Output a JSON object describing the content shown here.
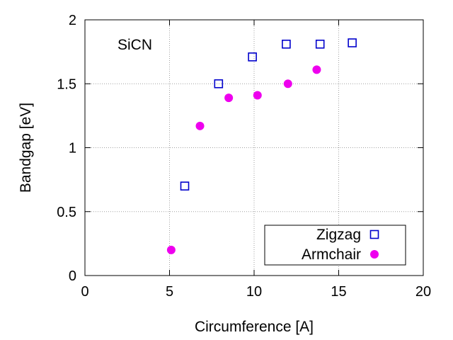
{
  "chart_data": {
    "type": "scatter",
    "title": "",
    "annotation": "SiCN",
    "xlabel": "Circumference  [A]",
    "ylabel": "Bandgap  [eV]",
    "xlim": [
      0,
      20
    ],
    "ylim": [
      0,
      2
    ],
    "xticks": [
      0,
      5,
      10,
      15,
      20
    ],
    "yticks": [
      0,
      0.5,
      1,
      1.5,
      2
    ],
    "xtick_labels": [
      "0",
      "5",
      "10",
      "15",
      "20"
    ],
    "ytick_labels": [
      "0",
      "0.5",
      "1",
      "1.5",
      "2"
    ],
    "grid": true,
    "legend_position": "bottom-right",
    "series": [
      {
        "name": "Zigzag",
        "marker": "open-square",
        "color": "#0000cc",
        "points": [
          [
            5.9,
            0.7
          ],
          [
            7.9,
            1.5
          ],
          [
            9.9,
            1.71
          ],
          [
            11.9,
            1.81
          ],
          [
            13.9,
            1.81
          ],
          [
            15.8,
            1.82
          ]
        ]
      },
      {
        "name": "Armchair",
        "marker": "filled-circle",
        "color": "#ee00ee",
        "points": [
          [
            5.1,
            0.2
          ],
          [
            6.8,
            1.17
          ],
          [
            8.5,
            1.39
          ],
          [
            10.2,
            1.41
          ],
          [
            12.0,
            1.5
          ],
          [
            13.7,
            1.61
          ]
        ]
      }
    ]
  }
}
